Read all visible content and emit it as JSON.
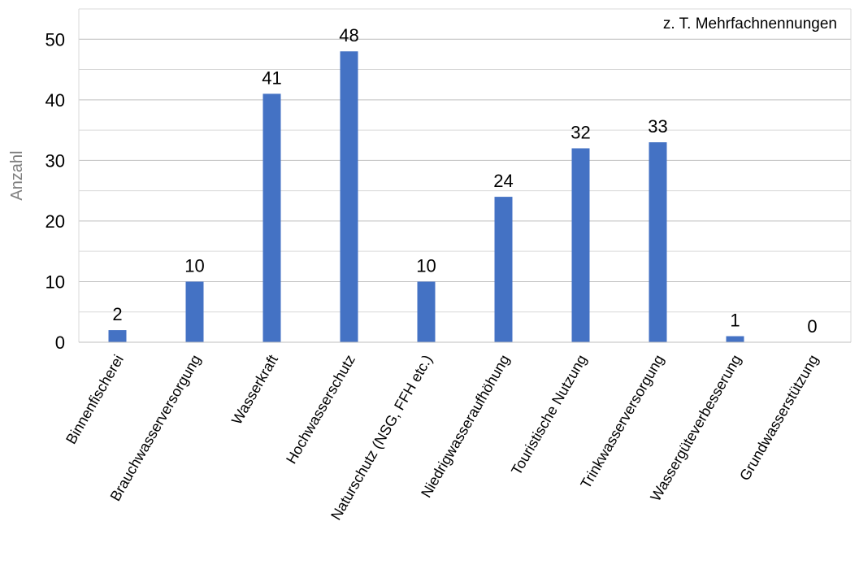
{
  "chart_data": {
    "type": "bar",
    "annotation": "z. T. Mehrfachnennungen",
    "ylabel": "Anzahl",
    "xlabel": "",
    "ylim": [
      0,
      55
    ],
    "yticks": [
      0,
      10,
      20,
      30,
      40,
      50
    ],
    "grid": true,
    "bar_color": "#4472C4",
    "categories": [
      "Binnenfischerei",
      "Brauchwasserversorgung",
      "Wasserkraft",
      "Hochwasserschutz",
      "Naturschutz (NSG, FFH etc.)",
      "Niedrigwasseraufhöhung",
      "Touristische Nutzung",
      "Trinkwasserversorgung",
      "Wassergüteverbesserung",
      "Grundwasserstützung"
    ],
    "values": [
      2,
      10,
      41,
      48,
      10,
      24,
      32,
      33,
      1,
      0
    ]
  }
}
